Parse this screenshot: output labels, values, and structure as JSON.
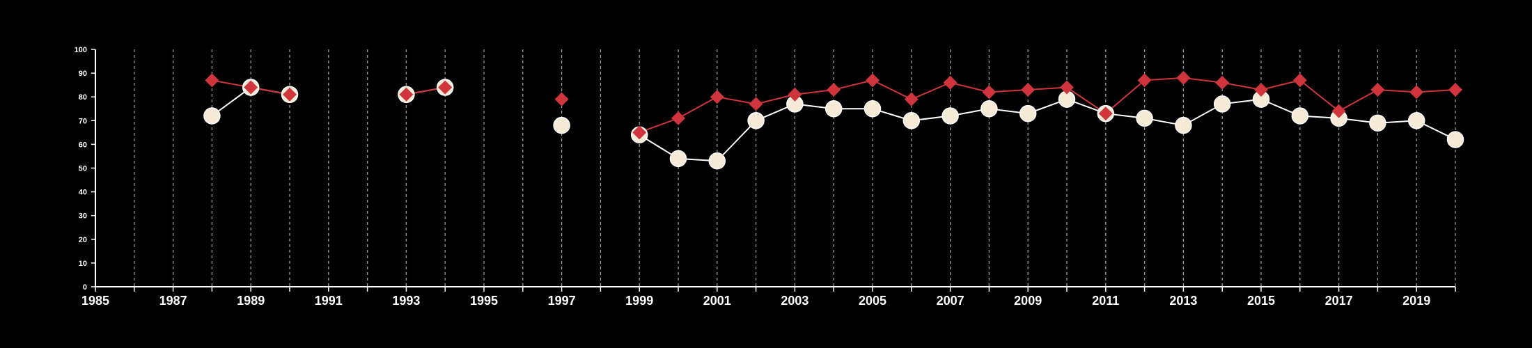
{
  "chart_data": {
    "type": "line",
    "title": "",
    "xlabel": "",
    "ylabel": "",
    "xlim": [
      1985,
      2020
    ],
    "ylim": [
      0,
      100
    ],
    "x_tick_labels": [
      "1985",
      "1987",
      "1989",
      "1991",
      "1993",
      "1995",
      "1997",
      "1999",
      "2001",
      "2003",
      "2005",
      "2007",
      "2009",
      "2011",
      "2013",
      "2015",
      "2017",
      "2019"
    ],
    "y_tick_labels": [
      "0",
      "10",
      "20",
      "30",
      "40",
      "50",
      "60",
      "70",
      "80",
      "90",
      "100"
    ],
    "grid": "vertical dashed lines at each year",
    "background": "#000000",
    "series": [
      {
        "marker": "circle",
        "color": "#f5ead6",
        "line_color": "#ffffff",
        "points": [
          [
            1988,
            72
          ],
          [
            1989,
            84
          ],
          [
            1990,
            81
          ],
          [
            1993,
            81
          ],
          [
            1994,
            84
          ],
          [
            1997,
            68
          ],
          [
            1999,
            64
          ],
          [
            2000,
            54
          ],
          [
            2001,
            53
          ],
          [
            2002,
            70
          ],
          [
            2003,
            77
          ],
          [
            2004,
            75
          ],
          [
            2005,
            75
          ],
          [
            2006,
            70
          ],
          [
            2007,
            72
          ],
          [
            2008,
            75
          ],
          [
            2009,
            73
          ],
          [
            2010,
            79
          ],
          [
            2011,
            73
          ],
          [
            2012,
            71
          ],
          [
            2013,
            68
          ],
          [
            2014,
            77
          ],
          [
            2015,
            79
          ],
          [
            2016,
            72
          ],
          [
            2017,
            71
          ],
          [
            2018,
            69
          ],
          [
            2019,
            70
          ],
          [
            2020,
            62
          ]
        ]
      },
      {
        "marker": "diamond",
        "color": "#d0343c",
        "line_color": "#d0343c",
        "points": [
          [
            1988,
            87
          ],
          [
            1989,
            84
          ],
          [
            1990,
            81
          ],
          [
            1993,
            81
          ],
          [
            1994,
            84
          ],
          [
            1997,
            79
          ],
          [
            1999,
            65
          ],
          [
            2000,
            71
          ],
          [
            2001,
            80
          ],
          [
            2002,
            77
          ],
          [
            2003,
            81
          ],
          [
            2004,
            83
          ],
          [
            2005,
            87
          ],
          [
            2006,
            79
          ],
          [
            2007,
            86
          ],
          [
            2008,
            82
          ],
          [
            2009,
            83
          ],
          [
            2010,
            84
          ],
          [
            2011,
            73
          ],
          [
            2012,
            87
          ],
          [
            2013,
            88
          ],
          [
            2014,
            86
          ],
          [
            2015,
            83
          ],
          [
            2016,
            87
          ],
          [
            2017,
            74
          ],
          [
            2018,
            83
          ],
          [
            2019,
            82
          ],
          [
            2020,
            83
          ]
        ]
      }
    ]
  }
}
